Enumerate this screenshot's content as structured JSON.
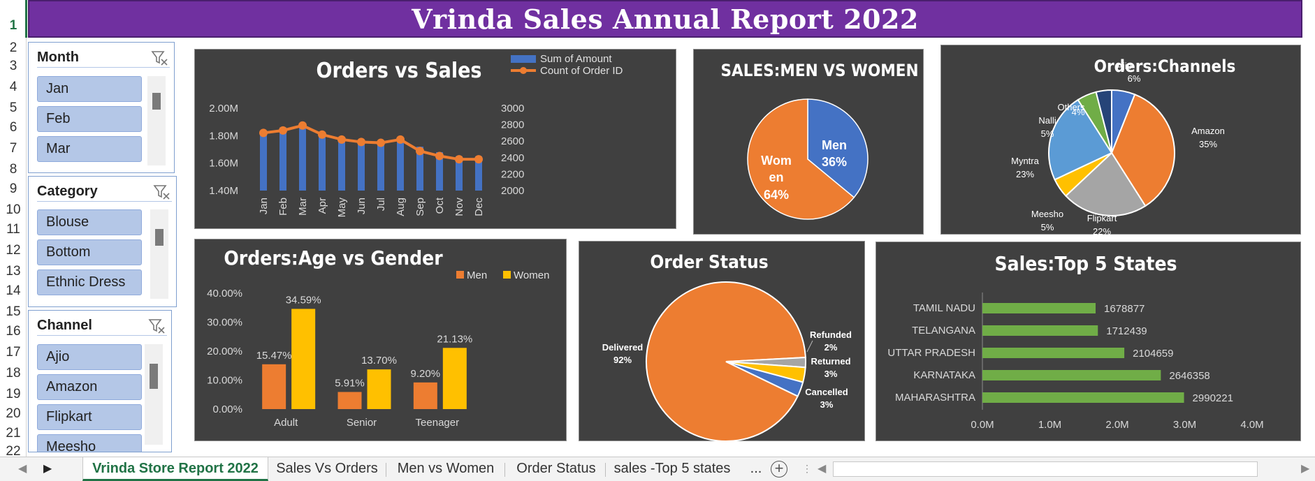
{
  "title": "Vrinda Sales Annual Report 2022",
  "row_numbers": [
    "1",
    "2",
    "3",
    "4",
    "5",
    "6",
    "7",
    "8",
    "9",
    "10",
    "11",
    "12",
    "13",
    "14",
    "15",
    "16",
    "17",
    "18",
    "19",
    "20",
    "21",
    "22"
  ],
  "slicers": [
    {
      "title": "Month",
      "items": [
        "Jan",
        "Feb",
        "Mar"
      ]
    },
    {
      "title": "Category",
      "items": [
        "Blouse",
        "Bottom",
        "Ethnic Dress"
      ]
    },
    {
      "title": "Channel",
      "items": [
        "Ajio",
        "Amazon",
        "Flipkart",
        "Meesho"
      ]
    }
  ],
  "sheet_tabs": [
    "Vrinda Store Report 2022",
    "Sales Vs Orders",
    "Men vs Women",
    "Order Status",
    "sales -Top 5 states"
  ],
  "tab_overflow": "...",
  "colors": {
    "banner": "#7030a0",
    "blue": "#4472c4",
    "orange": "#ed7d31",
    "gold": "#ffc000",
    "green": "#70ad47",
    "grey": "#a5a5a5",
    "panel": "#404040",
    "excel_green": "#217346"
  },
  "chart_data": [
    {
      "id": "orders_vs_sales",
      "type": "bar",
      "title": "Orders vs Sales",
      "categories": [
        "Jan",
        "Feb",
        "Mar",
        "Apr",
        "May",
        "Jun",
        "Jul",
        "Aug",
        "Sep",
        "Oct",
        "Nov",
        "Dec"
      ],
      "series": [
        {
          "name": "Sum of Amount",
          "kind": "bar",
          "axis": "left",
          "values": [
            1.83,
            1.86,
            1.89,
            1.8,
            1.78,
            1.77,
            1.76,
            1.77,
            1.72,
            1.68,
            1.65,
            1.65
          ]
        },
        {
          "name": "Count of Order ID",
          "kind": "line",
          "axis": "right",
          "values": [
            2700,
            2730,
            2790,
            2680,
            2620,
            2590,
            2580,
            2620,
            2480,
            2420,
            2380,
            2380
          ]
        }
      ],
      "left_axis": {
        "min": 1.4,
        "max": 2.0,
        "ticks": [
          "1.40M",
          "1.60M",
          "1.80M",
          "2.00M"
        ]
      },
      "right_axis": {
        "min": 2000,
        "max": 3000,
        "ticks": [
          "2000",
          "2200",
          "2400",
          "2600",
          "2800",
          "3000"
        ]
      },
      "legend": "top-right"
    },
    {
      "id": "men_vs_women",
      "type": "pie",
      "title": "SALES:MEN VS WOMEN",
      "slices": [
        {
          "label": "Men",
          "value": 36,
          "display": "36%"
        },
        {
          "label": "Wom en",
          "value": 64,
          "display": "64%"
        }
      ]
    },
    {
      "id": "channels",
      "type": "pie",
      "title": "Orders:Channels",
      "slices": [
        {
          "label": "Ajio",
          "value": 6,
          "display": "6%"
        },
        {
          "label": "Amazon",
          "value": 35,
          "display": "35%"
        },
        {
          "label": "Flipkart",
          "value": 22,
          "display": "22%"
        },
        {
          "label": "Meesho",
          "value": 5,
          "display": "5%"
        },
        {
          "label": "Myntra",
          "value": 23,
          "display": "23%"
        },
        {
          "label": "Nalli",
          "value": 5,
          "display": "5%"
        },
        {
          "label": "Others",
          "value": 4,
          "display": "4%"
        }
      ]
    },
    {
      "id": "age_gender",
      "type": "bar",
      "title": "Orders:Age vs Gender",
      "categories": [
        "Adult",
        "Senior",
        "Teenager"
      ],
      "series": [
        {
          "name": "Men",
          "values": [
            15.47,
            5.91,
            9.2
          ],
          "labels": [
            "15.47%",
            "5.91%",
            "9.20%"
          ]
        },
        {
          "name": "Women",
          "values": [
            34.59,
            13.7,
            21.13
          ],
          "labels": [
            "34.59%",
            "13.70%",
            "21.13%"
          ]
        }
      ],
      "ylim": [
        0,
        40
      ],
      "ticks": [
        "0.00%",
        "10.00%",
        "20.00%",
        "30.00%",
        "40.00%"
      ],
      "legend": "top-right"
    },
    {
      "id": "order_status",
      "type": "pie",
      "title": "Order Status",
      "slices": [
        {
          "label": "Delivered",
          "value": 92,
          "display": "92%"
        },
        {
          "label": "Refunded",
          "value": 2,
          "display": "2%"
        },
        {
          "label": "Returned",
          "value": 3,
          "display": "3%"
        },
        {
          "label": "Cancelled",
          "value": 3,
          "display": "3%"
        }
      ]
    },
    {
      "id": "top_states",
      "type": "bar",
      "orientation": "horizontal",
      "title": "Sales:Top 5 States",
      "categories": [
        "TAMIL NADU",
        "TELANGANA",
        "UTTAR PRADESH",
        "KARNATAKA",
        "MAHARASHTRA"
      ],
      "values": [
        1678877,
        1712439,
        2104659,
        2646358,
        2990221
      ],
      "xlim": [
        0,
        4000000
      ],
      "ticks": [
        "0.0M",
        "1.0M",
        "2.0M",
        "3.0M",
        "4.0M"
      ]
    }
  ]
}
